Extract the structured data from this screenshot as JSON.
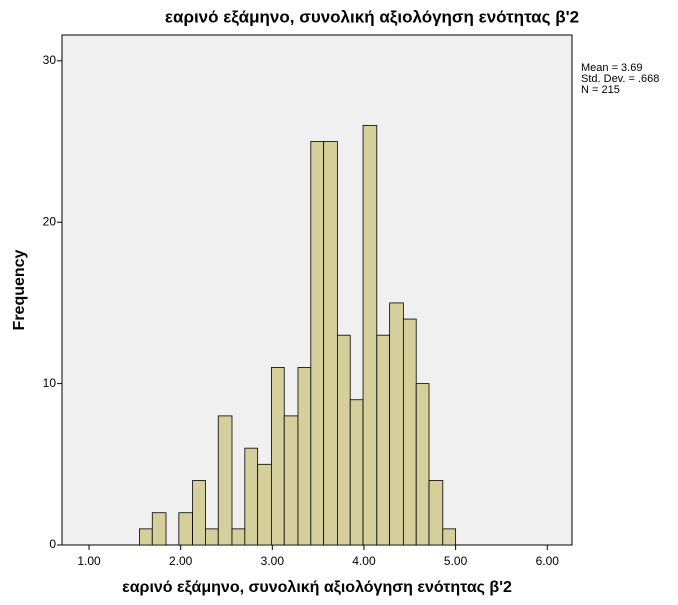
{
  "chart_data": {
    "type": "histogram",
    "title": "εαρινό εξάμηνο, συνολική αξιολόγηση ενότητας β'2",
    "x_label": "εαρινό εξάμηνο, συνολική αξιολόγηση ενότητας β'2",
    "y_label": "Frequency",
    "stats": [
      "Mean = 3.69",
      "Std. Dev. = .668",
      "N = 215"
    ],
    "bins": [
      1.55,
      1.69,
      1.84,
      1.98,
      2.13,
      2.27,
      2.41,
      2.56,
      2.7,
      2.84,
      2.99,
      3.13,
      3.28,
      3.42,
      3.56,
      3.71,
      3.85,
      3.99,
      4.14,
      4.28,
      4.43,
      4.57,
      4.71,
      4.86,
      5.0
    ],
    "values": [
      1,
      2,
      0,
      2,
      4,
      1,
      8,
      1,
      6,
      5,
      11,
      8,
      11,
      25,
      25,
      13,
      9,
      26,
      13,
      15,
      14,
      10,
      4,
      1
    ],
    "color": "#d4cf9b",
    "xlim": [
      0.705,
      6.27
    ],
    "ylim": [
      0,
      31.6
    ],
    "xticks": [
      {
        "value": 1,
        "label": "1.00"
      },
      {
        "value": 2,
        "label": "2.00"
      },
      {
        "value": 3,
        "label": "3.00"
      },
      {
        "value": 4,
        "label": "4.00"
      },
      {
        "value": 5,
        "label": "5.00"
      },
      {
        "value": 6,
        "label": "6.00"
      }
    ],
    "yticks": [
      0,
      10,
      20,
      30
    ]
  }
}
